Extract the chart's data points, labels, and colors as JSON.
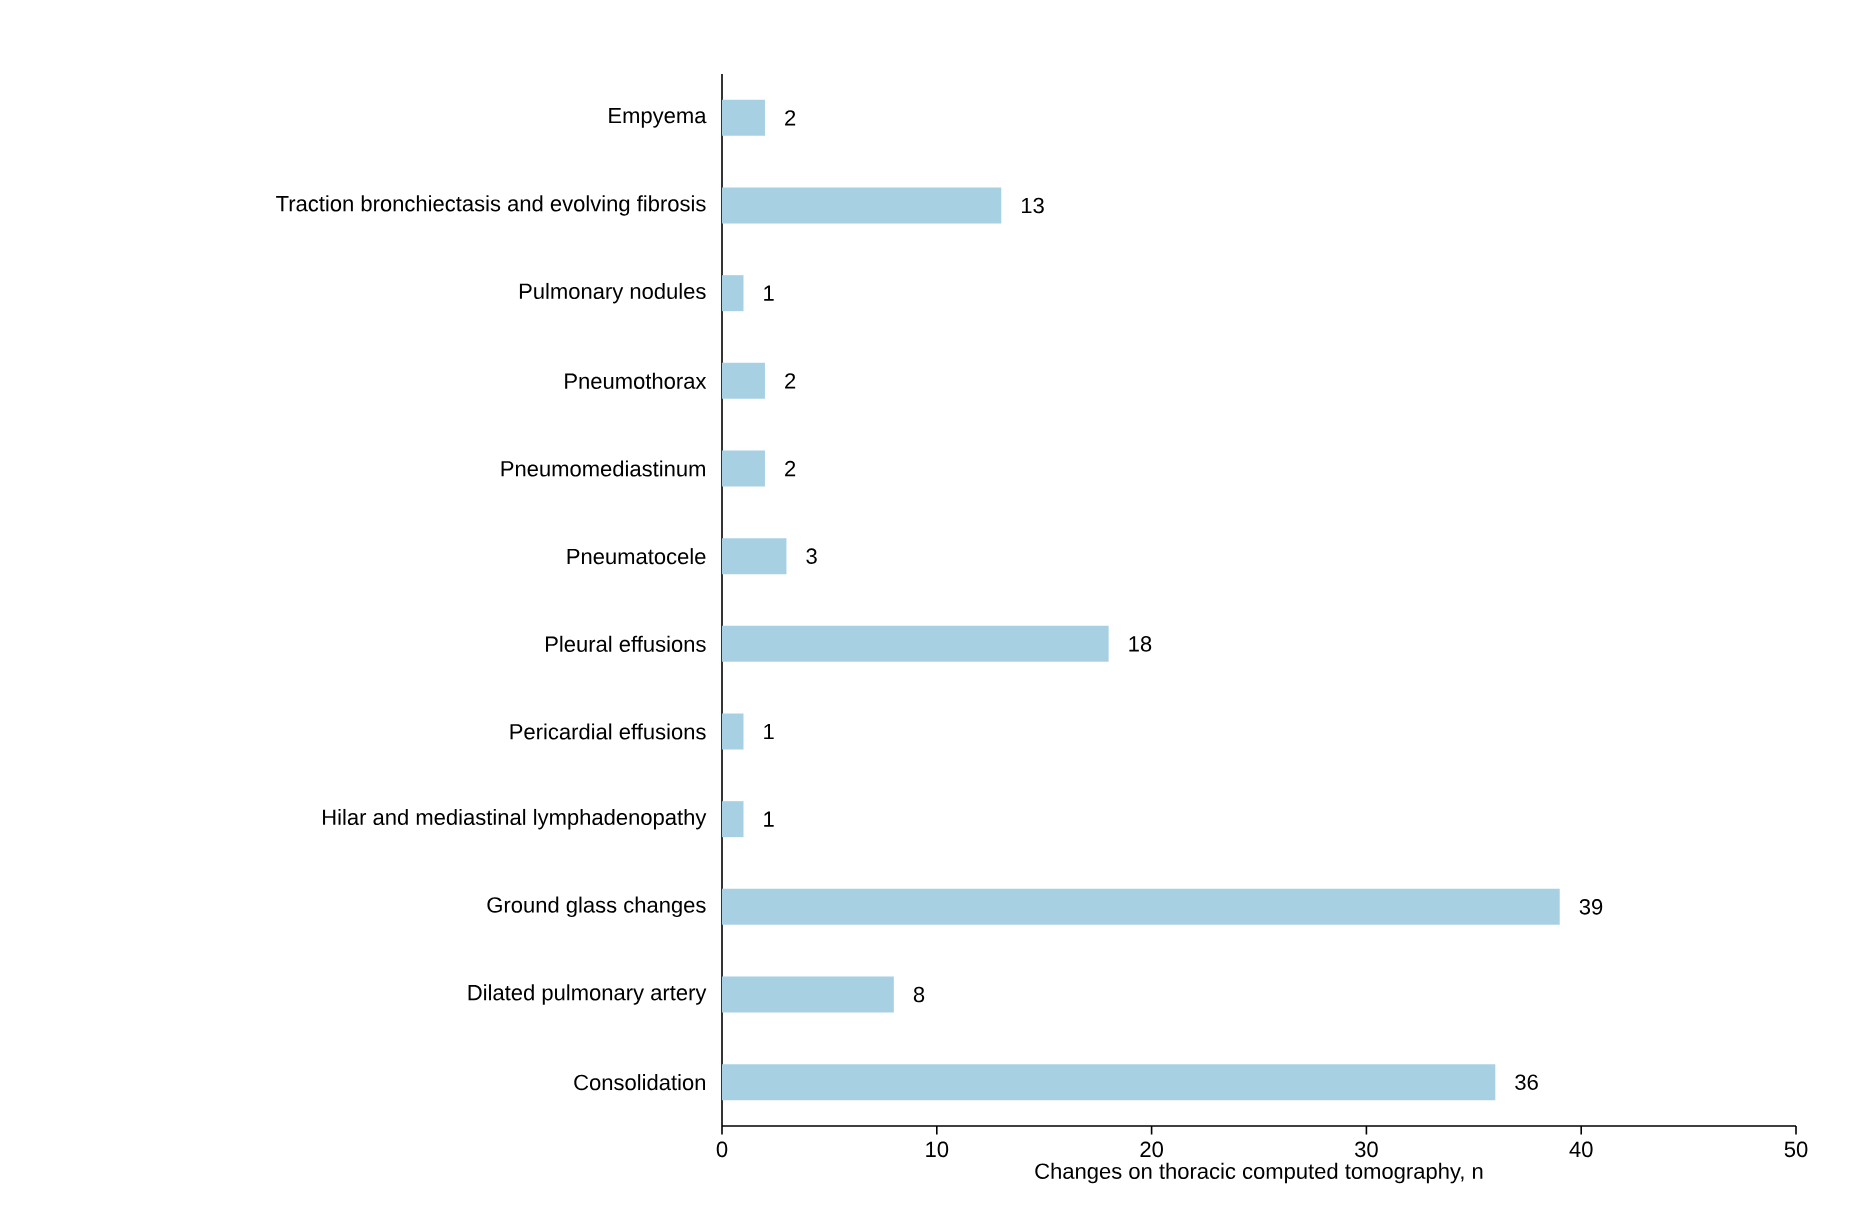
{
  "chart_data": {
    "type": "bar",
    "orientation": "horizontal",
    "xlabel": "Changes on thoracic computed tomography, n",
    "categories": [
      "Empyema",
      "Traction bronchiectasis and evolving fibrosis",
      "Pulmonary nodules",
      "Pneumothorax",
      "Pneumomediastinum",
      "Pneumatocele",
      "Pleural effusions",
      "Pericardial effusions",
      "Hilar and mediastinal lymphadenopathy",
      "Ground glass changes",
      "Dilated pulmonary artery",
      "Consolidation"
    ],
    "values": [
      2,
      13,
      1,
      2,
      2,
      3,
      18,
      1,
      1,
      39,
      8,
      36
    ],
    "color": "#a8d0e3",
    "xlim": [
      0,
      50
    ],
    "xticks": [
      0,
      10,
      20,
      30,
      40,
      50
    ],
    "data_labels": true
  }
}
